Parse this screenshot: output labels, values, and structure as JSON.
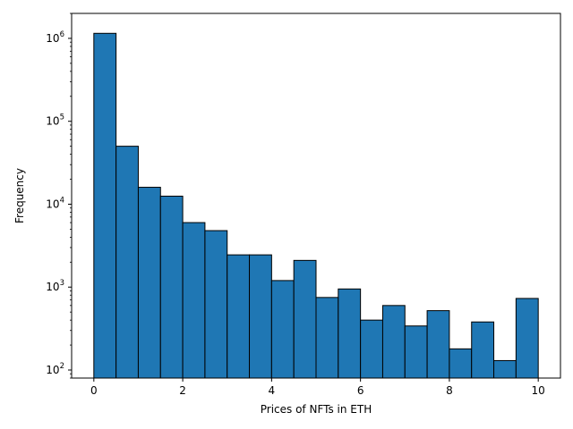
{
  "chart_data": {
    "type": "bar",
    "title": "",
    "xlabel": "Prices of NFTs in ETH",
    "ylabel": "Frequency",
    "yscale": "log",
    "xlim": [
      -0.5,
      10.5
    ],
    "ylim": [
      80,
      2000000
    ],
    "grid": false,
    "legend": "none",
    "bar_color": "#1f77b4",
    "edge_color": "#000000",
    "bin_edges": [
      0,
      0.5,
      1,
      1.5,
      2,
      2.5,
      3,
      3.5,
      4,
      4.5,
      5,
      5.5,
      6,
      6.5,
      7,
      7.5,
      8,
      8.5,
      9,
      9.5,
      10
    ],
    "values": [
      1150000,
      50000,
      16000,
      12500,
      6000,
      4800,
      2450,
      2450,
      1200,
      2100,
      750,
      950,
      400,
      600,
      340,
      520,
      180,
      380,
      130,
      730
    ],
    "x_ticks": [
      {
        "value": 0,
        "label": "0"
      },
      {
        "value": 2,
        "label": "2"
      },
      {
        "value": 4,
        "label": "4"
      },
      {
        "value": 6,
        "label": "6"
      },
      {
        "value": 8,
        "label": "8"
      },
      {
        "value": 10,
        "label": "10"
      }
    ],
    "y_ticks": [
      {
        "value": 100,
        "base": "10",
        "exp": "2"
      },
      {
        "value": 1000,
        "base": "10",
        "exp": "3"
      },
      {
        "value": 10000,
        "base": "10",
        "exp": "4"
      },
      {
        "value": 100000,
        "base": "10",
        "exp": "5"
      },
      {
        "value": 1000000,
        "base": "10",
        "exp": "6"
      }
    ]
  }
}
